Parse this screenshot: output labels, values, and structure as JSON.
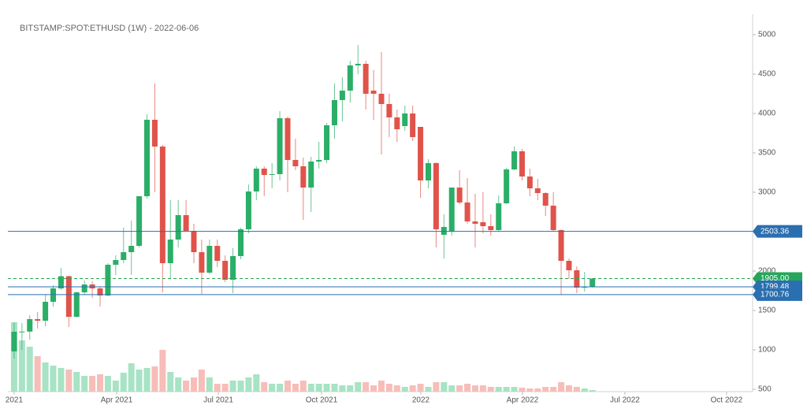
{
  "chart_data": {
    "type": "candlestick",
    "title": "BITSTAMP:SPOT:ETHUSD (1W) - 2022-06-06",
    "up_color": "#2bae67",
    "down_color": "#e0534a",
    "volume_up_color": "#a7e3c4",
    "volume_down_color": "#f7bdb8",
    "ylim": [
      470,
      5260
    ],
    "yticks": [
      500,
      1000,
      1500,
      2000,
      2500,
      3000,
      3500,
      4000,
      4500,
      5000
    ],
    "xlim": [
      -0.8,
      94.3
    ],
    "xticks": [
      {
        "value": 0,
        "label": "2021"
      },
      {
        "value": 13.12,
        "label": "Apr 2021"
      },
      {
        "value": 26.13,
        "label": "Jul 2021"
      },
      {
        "value": 39.34,
        "label": "Oct 2021"
      },
      {
        "value": 52.04,
        "label": "2022"
      },
      {
        "value": 65.05,
        "label": "Apr 2022"
      },
      {
        "value": 78.16,
        "label": "Jul 2022"
      },
      {
        "value": 91.17,
        "label": "Oct 2022"
      }
    ],
    "open": [
      980,
      1230,
      1232,
      1390,
      1370,
      1610,
      1780,
      1935,
      1420,
      1730,
      1830,
      1780,
      1690,
      2080,
      2140,
      2240,
      2320,
      2950,
      3920,
      3580,
      2100,
      2400,
      2710,
      2510,
      2240,
      1980,
      2320,
      2130,
      1890,
      2190,
      2530,
      3010,
      3300,
      3220,
      3230,
      3940,
      3410,
      3330,
      3060,
      3390,
      3410,
      3850,
      4170,
      4290,
      4610,
      4630,
      4290,
      4250,
      4120,
      3950,
      3840,
      4000,
      3830,
      3150,
      3370,
      2460,
      2500,
      3060,
      2870,
      2630,
      2620,
      2570,
      2520,
      2860,
      3290,
      3520,
      3200,
      3050,
      2990,
      2830,
      2520,
      2130,
      2010,
      1790,
      1800
    ],
    "high": [
      1350,
      1340,
      1440,
      1480,
      1700,
      1820,
      2040,
      1940,
      1740,
      1880,
      1870,
      1800,
      2100,
      2200,
      2550,
      2640,
      2950,
      3990,
      4380,
      3600,
      2900,
      2900,
      2900,
      2600,
      2400,
      2400,
      2400,
      2200,
      2290,
      2550,
      3100,
      3330,
      3330,
      3370,
      4030,
      3960,
      3680,
      3440,
      3450,
      3640,
      3880,
      4380,
      4460,
      4670,
      4870,
      4670,
      4550,
      4780,
      4250,
      4050,
      4100,
      4100,
      3830,
      3420,
      3380,
      2720,
      3060,
      3280,
      3180,
      2980,
      3000,
      2720,
      2960,
      3310,
      3580,
      3550,
      3300,
      3170,
      3000,
      3000,
      2530,
      2160,
      2060,
      1990,
      1910
    ],
    "low": [
      890,
      1000,
      1130,
      1270,
      1300,
      1550,
      1760,
      1290,
      1410,
      1700,
      1660,
      1550,
      1680,
      1950,
      2100,
      1950,
      2300,
      2920,
      3000,
      1730,
      1900,
      2300,
      2500,
      2100,
      1710,
      1960,
      2050,
      1860,
      1720,
      2150,
      2480,
      2900,
      2950,
      3050,
      3150,
      3000,
      3280,
      2650,
      2750,
      3300,
      3370,
      3680,
      3900,
      4140,
      4500,
      4050,
      3920,
      3480,
      3700,
      3640,
      3780,
      3650,
      2930,
      3050,
      2300,
      2160,
      2450,
      2850,
      2600,
      2300,
      2480,
      2450,
      2500,
      2850,
      3280,
      3150,
      2950,
      2900,
      2700,
      2500,
      1700,
      1900,
      1720,
      1740,
      1790
    ],
    "close": [
      1230,
      1232,
      1390,
      1370,
      1610,
      1780,
      1935,
      1420,
      1730,
      1830,
      1780,
      1690,
      2080,
      2140,
      2240,
      2320,
      2950,
      3920,
      3580,
      2100,
      2400,
      2710,
      2510,
      2240,
      1980,
      2320,
      2130,
      1890,
      2190,
      2530,
      3010,
      3300,
      3220,
      3230,
      3940,
      3410,
      3330,
      3060,
      3390,
      3410,
      3850,
      4170,
      4290,
      4610,
      4630,
      4250,
      4250,
      4120,
      3950,
      3800,
      4000,
      3700,
      3150,
      3370,
      2530,
      2560,
      3060,
      2870,
      2630,
      2600,
      2570,
      2520,
      2860,
      3290,
      3520,
      3200,
      3050,
      2990,
      2830,
      2520,
      2130,
      2010,
      1790,
      1800,
      1905
    ],
    "volume_lim": [
      0,
      960000
    ],
    "volume": [
      704000,
      520000,
      456000,
      360000,
      296000,
      264000,
      240000,
      224000,
      200000,
      160000,
      160000,
      176000,
      160000,
      112000,
      192000,
      288000,
      224000,
      240000,
      256000,
      424000,
      200000,
      144000,
      112000,
      144000,
      224000,
      144000,
      80000,
      80000,
      112000,
      112000,
      144000,
      176000,
      96000,
      80000,
      80000,
      112000,
      80000,
      112000,
      80000,
      80000,
      80000,
      80000,
      64000,
      64000,
      96000,
      96000,
      64000,
      112000,
      80000,
      64000,
      48000,
      64000,
      80000,
      48000,
      96000,
      96000,
      64000,
      64000,
      80000,
      64000,
      64000,
      48000,
      48000,
      48000,
      48000,
      40000,
      32000,
      32000,
      48000,
      48000,
      96000,
      64000,
      48000,
      32000,
      16000
    ],
    "levels": [
      {
        "value": 2503.36,
        "label": "2503.36",
        "color": "#2a6fb0",
        "dashed": false
      },
      {
        "value": 1905.0,
        "label": "1905.00",
        "color": "#26a65b",
        "dashed": true
      },
      {
        "value": 1799.48,
        "label": "1799.48",
        "color": "#2a6fb0",
        "dashed": false
      },
      {
        "value": 1700.76,
        "label": "1700.76",
        "color": "#2a6fb0",
        "dashed": false
      }
    ]
  }
}
